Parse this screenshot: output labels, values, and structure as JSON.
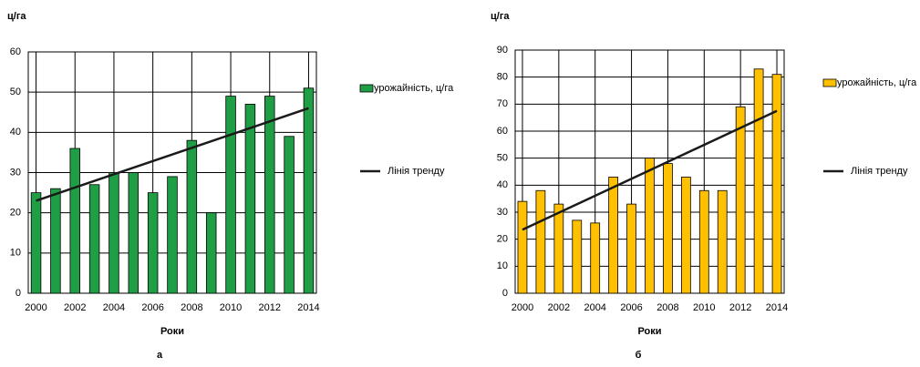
{
  "chart_data": [
    {
      "type": "bar",
      "caption": "а",
      "y_label": "ц/га",
      "x_label": "Роки",
      "x": [
        2000,
        2001,
        2002,
        2003,
        2004,
        2005,
        2006,
        2007,
        2008,
        2009,
        2010,
        2011,
        2012,
        2013,
        2014
      ],
      "series": [
        {
          "name": "урожайність, ц/га",
          "type": "bar",
          "color": "#1f9e45",
          "values": [
            25,
            26,
            36,
            27,
            30,
            30,
            25,
            29,
            38,
            20,
            49,
            47,
            49,
            39,
            51
          ]
        },
        {
          "name": "Лінія тренду",
          "type": "line",
          "color": "#1a1a1a",
          "x": [
            2000,
            2014
          ],
          "values": [
            23,
            46
          ]
        }
      ],
      "xlim": [
        1999.6,
        2014.4
      ],
      "xticks": [
        2000,
        2002,
        2004,
        2006,
        2008,
        2010,
        2012,
        2014
      ],
      "ylim": [
        0,
        60
      ],
      "yticks": [
        0,
        10,
        20,
        30,
        40,
        50,
        60
      ],
      "grid": true
    },
    {
      "type": "bar",
      "caption": "б",
      "y_label": "ц/га",
      "x_label": "Роки",
      "x": [
        2000,
        2001,
        2002,
        2003,
        2004,
        2005,
        2006,
        2007,
        2008,
        2009,
        2010,
        2011,
        2012,
        2013,
        2014
      ],
      "series": [
        {
          "name": "урожайність, ц/га",
          "type": "bar",
          "color": "#ffc000",
          "values": [
            34,
            38,
            33,
            27,
            26,
            43,
            33,
            50,
            48,
            43,
            38,
            38,
            69,
            83,
            81
          ]
        },
        {
          "name": "Лінія тренду",
          "type": "line",
          "color": "#1a1a1a",
          "x": [
            2000,
            2014
          ],
          "values": [
            23.5,
            67.5
          ]
        }
      ],
      "xlim": [
        1999.6,
        2014.4
      ],
      "xticks": [
        2000,
        2002,
        2004,
        2006,
        2008,
        2010,
        2012,
        2014
      ],
      "ylim": [
        0,
        90
      ],
      "yticks": [
        0,
        10,
        20,
        30,
        40,
        50,
        60,
        70,
        80,
        90
      ],
      "grid": true
    }
  ]
}
